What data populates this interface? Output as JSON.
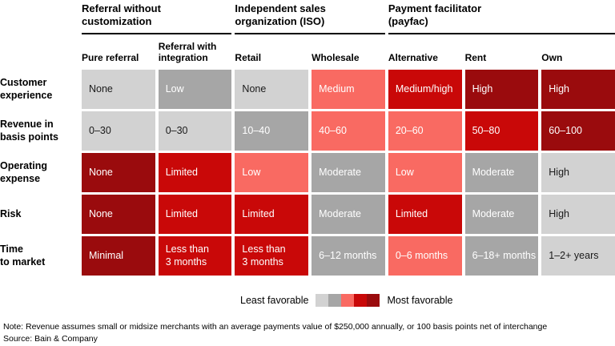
{
  "chart_data": {
    "type": "heatmap",
    "title": "",
    "column_groups": [
      {
        "label": "Referral without\ncustomization",
        "span": 2
      },
      {
        "label": "Independent sales\norganization (ISO)",
        "span": 2
      },
      {
        "label": "Payment facilitator\n(payfac)",
        "span": 3
      }
    ],
    "columns": [
      "Pure referral",
      "Referral with\nintegration",
      "Retail",
      "Wholesale",
      "Alternative",
      "Rent",
      "Own"
    ],
    "rows": [
      {
        "label": "Customer\nexperience",
        "cells": [
          {
            "text": "None",
            "tone": "g1"
          },
          {
            "text": "Low",
            "tone": "g2"
          },
          {
            "text": "None",
            "tone": "g1"
          },
          {
            "text": "Medium",
            "tone": "r1"
          },
          {
            "text": "Medium/high",
            "tone": "r2"
          },
          {
            "text": "High",
            "tone": "r3"
          },
          {
            "text": "High",
            "tone": "r3"
          }
        ]
      },
      {
        "label": "Revenue in\nbasis points",
        "cells": [
          {
            "text": "0–30",
            "tone": "g1"
          },
          {
            "text": "0–30",
            "tone": "g1"
          },
          {
            "text": "10–40",
            "tone": "g2"
          },
          {
            "text": "40–60",
            "tone": "r1"
          },
          {
            "text": "20–60",
            "tone": "r1"
          },
          {
            "text": "50–80",
            "tone": "r2"
          },
          {
            "text": "60–100",
            "tone": "r3"
          }
        ]
      },
      {
        "label": "Operating\nexpense",
        "cells": [
          {
            "text": "None",
            "tone": "r3"
          },
          {
            "text": "Limited",
            "tone": "r2"
          },
          {
            "text": "Low",
            "tone": "r1"
          },
          {
            "text": "Moderate",
            "tone": "g2"
          },
          {
            "text": "Low",
            "tone": "r1"
          },
          {
            "text": "Moderate",
            "tone": "g2"
          },
          {
            "text": "High",
            "tone": "g1"
          }
        ]
      },
      {
        "label": "Risk",
        "cells": [
          {
            "text": "None",
            "tone": "r3"
          },
          {
            "text": "Limited",
            "tone": "r2"
          },
          {
            "text": "Limited",
            "tone": "r2"
          },
          {
            "text": "Moderate",
            "tone": "g2"
          },
          {
            "text": "Limited",
            "tone": "r2"
          },
          {
            "text": "Moderate",
            "tone": "g2"
          },
          {
            "text": "High",
            "tone": "g1"
          }
        ]
      },
      {
        "label": "Time\nto market",
        "cells": [
          {
            "text": "Minimal",
            "tone": "r3"
          },
          {
            "text": "Less than\n3 months",
            "tone": "r2"
          },
          {
            "text": "Less than\n3 months",
            "tone": "r2"
          },
          {
            "text": "6–12 months",
            "tone": "g2"
          },
          {
            "text": "0–6 months",
            "tone": "r1"
          },
          {
            "text": "6–18+ months",
            "tone": "g2"
          },
          {
            "text": "1–2+ years",
            "tone": "g1"
          }
        ]
      }
    ],
    "scale": {
      "least": "Least favorable",
      "most": "Most favorable",
      "order": [
        "g1",
        "g2",
        "r1",
        "r2",
        "r3"
      ]
    },
    "palette": {
      "g1": {
        "bg": "#d2d2d2",
        "fg": "#1a1a1a"
      },
      "g2": {
        "bg": "#a6a6a6",
        "fg": "#ffffff"
      },
      "r1": {
        "bg": "#f96a62",
        "fg": "#ffffff"
      },
      "r2": {
        "bg": "#c90808",
        "fg": "#ffffff"
      },
      "r3": {
        "bg": "#9a0b0d",
        "fg": "#ffffff"
      }
    }
  },
  "note": "Note: Revenue assumes small or midsize merchants with an average payments value of $250,000 annually, or 100 basis points net of interchange",
  "source": "Source: Bain & Company"
}
